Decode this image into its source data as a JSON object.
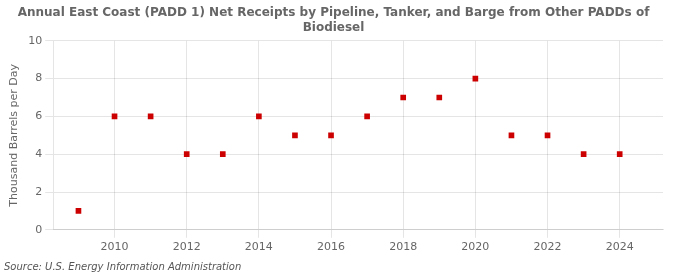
{
  "chart_data": {
    "type": "scatter",
    "title": "Annual East Coast (PADD 1) Net Receipts by Pipeline, Tanker, and Barge from Other PADDs of\nBiodiesel",
    "ylabel": "Thousand Barrels per Day",
    "source": "Source: U.S. Energy Information Administration",
    "x": [
      2009,
      2010,
      2011,
      2012,
      2013,
      2014,
      2015,
      2016,
      2017,
      2018,
      2019,
      2020,
      2021,
      2022,
      2023,
      2024
    ],
    "values": [
      1,
      6,
      6,
      4,
      4,
      6,
      5,
      5,
      6,
      7,
      7,
      8,
      5,
      5,
      4,
      4
    ],
    "color": "#cc0000",
    "marker": "square",
    "xlim": [
      2008.3,
      2025.2
    ],
    "ylim": [
      0,
      10
    ],
    "xticks": [
      2010,
      2012,
      2014,
      2016,
      2018,
      2020,
      2022,
      2024
    ],
    "yticks": [
      0,
      2,
      4,
      6,
      8,
      10
    ],
    "grid": true
  }
}
